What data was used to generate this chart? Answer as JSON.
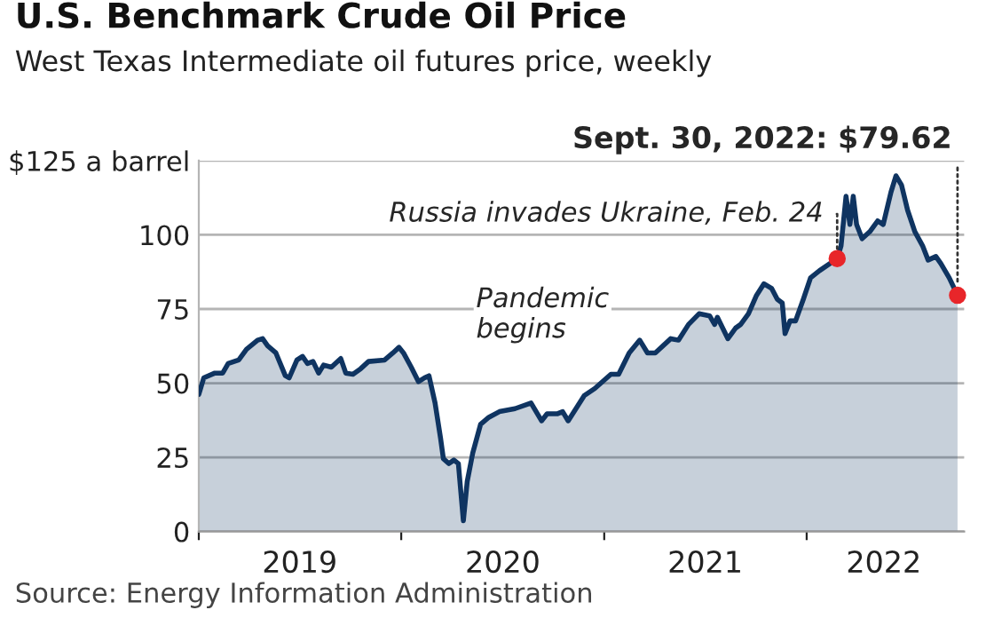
{
  "chart_data": {
    "type": "area",
    "title": "U.S. Benchmark Crude Oil Price",
    "subtitle": "West Texas Intermediate oil futures price, weekly",
    "x": [
      "2019-01-01",
      "2019-01-10",
      "2019-01-30",
      "2019-02-13",
      "2019-02-23",
      "2019-03-14",
      "2019-03-28",
      "2019-04-17",
      "2019-04-26",
      "2019-05-05",
      "2019-05-20",
      "2019-06-06",
      "2019-06-13",
      "2019-06-27",
      "2019-07-07",
      "2019-07-16",
      "2019-07-26",
      "2019-08-05",
      "2019-08-14",
      "2019-08-28",
      "2019-09-14",
      "2019-09-23",
      "2019-10-06",
      "2019-10-20",
      "2019-11-03",
      "2019-12-02",
      "2019-12-17",
      "2019-12-28",
      "2020-01-05",
      "2020-01-19",
      "2020-02-01",
      "2020-02-12",
      "2020-02-20",
      "2020-03-02",
      "2020-03-12",
      "2020-03-17",
      "2020-03-27",
      "2020-04-05",
      "2020-04-13",
      "2020-04-22",
      "2020-04-29",
      "2020-05-09",
      "2020-05-23",
      "2020-06-07",
      "2020-06-26",
      "2020-07-24",
      "2020-08-22",
      "2020-09-10",
      "2020-09-20",
      "2020-10-09",
      "2020-10-18",
      "2020-10-28",
      "2020-11-26",
      "2020-12-15",
      "2021-01-13",
      "2021-01-27",
      "2021-02-15",
      "2021-03-06",
      "2021-03-20",
      "2021-04-03",
      "2021-05-01",
      "2021-05-15",
      "2021-06-02",
      "2021-06-21",
      "2021-07-10",
      "2021-07-19",
      "2021-07-24",
      "2021-08-12",
      "2021-08-26",
      "2021-09-04",
      "2021-09-18",
      "2021-10-02",
      "2021-10-16",
      "2021-10-30",
      "2021-11-09",
      "2021-11-18",
      "2021-11-23",
      "2021-12-02",
      "2021-12-12",
      "2021-12-26",
      "2022-01-08",
      "2022-01-24",
      "2022-02-25",
      "2022-03-04",
      "2022-03-13",
      "2022-03-20",
      "2022-03-26",
      "2022-04-01",
      "2022-04-11",
      "2022-04-25",
      "2022-05-09",
      "2022-05-19",
      "2022-06-02",
      "2022-06-11",
      "2022-06-21",
      "2022-07-02",
      "2022-07-15",
      "2022-07-29",
      "2022-08-08",
      "2022-08-22",
      "2022-08-31",
      "2022-09-15",
      "2022-09-30"
    ],
    "series": [
      {
        "color": "#0f3461",
        "values": [
          46.2,
          51.8,
          53.4,
          53.4,
          56.6,
          57.8,
          61.4,
          64.5,
          65,
          62.6,
          60.2,
          52.5,
          51.8,
          57.8,
          59,
          56.6,
          57.3,
          53.4,
          56.1,
          55.4,
          58.3,
          53.4,
          53,
          54.9,
          57.3,
          57.8,
          60.2,
          62.1,
          60.2,
          55.4,
          50.5,
          51.8,
          52.5,
          43.3,
          31.3,
          24.5,
          22.9,
          24.1,
          22.9,
          3.6,
          16.9,
          26.5,
          36.1,
          38.5,
          40.4,
          41.4,
          43.3,
          37.3,
          39.7,
          39.7,
          40.4,
          37.3,
          45.8,
          48.2,
          53,
          53,
          60.2,
          64.5,
          60.2,
          60.2,
          65,
          64.5,
          69.8,
          73.4,
          72.7,
          69.8,
          72.2,
          65,
          68.6,
          69.8,
          73.4,
          79.4,
          83.5,
          81.9,
          78.3,
          77,
          66.7,
          71,
          71,
          78.3,
          85.5,
          87.9,
          92,
          96.3,
          113,
          103.5,
          113,
          103.5,
          98.7,
          101.1,
          104.7,
          103.5,
          114.4,
          119.9,
          116.8,
          108.3,
          101.1,
          96.3,
          91.5,
          92.7,
          90.3,
          85.5,
          79.62
        ]
      }
    ],
    "xlim": [
      "2019-01-01",
      "2022-10-12"
    ],
    "xticks": [
      {
        "value": "2019-01-01",
        "label": null
      },
      {
        "value": "2019-07-02",
        "label": "2019"
      },
      {
        "value": "2020-01-01",
        "label": null
      },
      {
        "value": "2020-07-02",
        "label": "2020"
      },
      {
        "value": "2021-01-01",
        "label": null
      },
      {
        "value": "2021-07-02",
        "label": "2021"
      },
      {
        "value": "2022-01-01",
        "label": null
      },
      {
        "value": "2022-05-20",
        "label": "2022"
      }
    ],
    "ylim": [
      0,
      125
    ],
    "yticks": [
      0,
      25,
      50,
      75,
      100,
      {
        "value": 125,
        "label": "$125 a barrel"
      }
    ],
    "grid": "y",
    "marker": "none",
    "line_style": "solid",
    "annotations": [
      {
        "text": "Sept. 30, 2022: $79.62",
        "x": "2022-09-30",
        "y": 79.62
      },
      {
        "text": "Russia invades Ukraine, Feb. 24",
        "x": "2022-02-25",
        "y": 92
      },
      "Pandemic\nbegins",
      "Source: Energy Information Administration"
    ]
  }
}
